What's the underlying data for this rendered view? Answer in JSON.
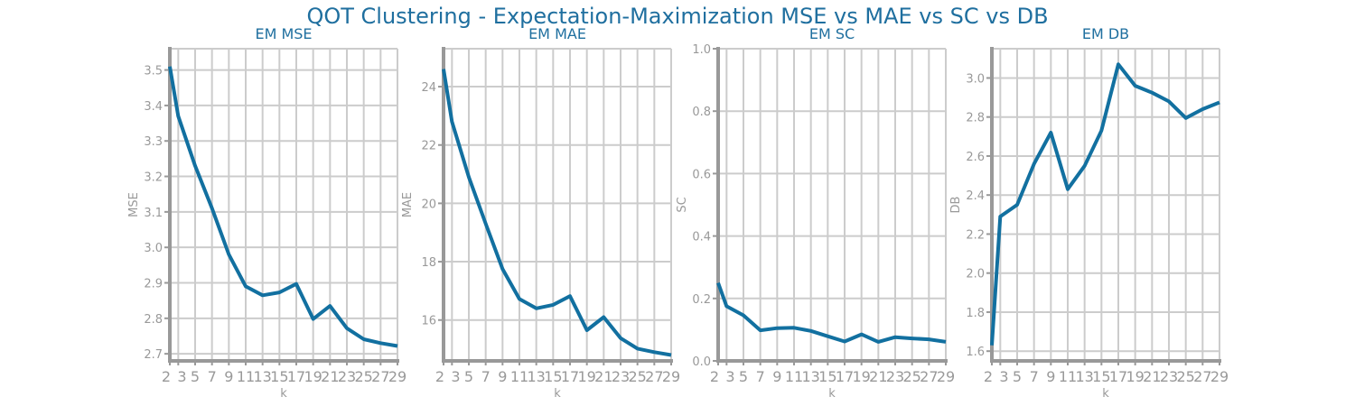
{
  "suptitle": "QOT Clustering - Expectation-Maximization MSE vs MAE vs SC vs DB",
  "colors": {
    "title": "#1f6f9f",
    "series": "#1270a0",
    "grid": "#cccccc",
    "spine": "#999999",
    "tick_label": "#999999"
  },
  "chart_data": [
    {
      "type": "line",
      "title": "EM MSE",
      "xlabel": "k",
      "ylabel": "MSE",
      "x": [
        2,
        3,
        5,
        7,
        9,
        11,
        13,
        15,
        17,
        19,
        21,
        23,
        25,
        27,
        29
      ],
      "xticks": [
        "2",
        "3",
        "5",
        "7",
        "9",
        "11",
        "13",
        "15",
        "17",
        "19",
        "21",
        "23",
        "25",
        "27",
        "29"
      ],
      "xlim": [
        2,
        29
      ],
      "y": [
        3.51,
        3.37,
        3.23,
        3.11,
        2.98,
        2.89,
        2.865,
        2.873,
        2.897,
        2.798,
        2.835,
        2.772,
        2.741,
        2.73,
        2.722
      ],
      "ylim": [
        2.68,
        3.56
      ],
      "yticks": [
        2.7,
        2.8,
        2.9,
        3.0,
        3.1,
        3.2,
        3.3,
        3.4,
        3.5
      ],
      "ytick_labels": [
        "2.7",
        "2.8",
        "2.9",
        "3.0",
        "3.1",
        "3.2",
        "3.3",
        "3.4",
        "3.5"
      ],
      "grid": true
    },
    {
      "type": "line",
      "title": "EM MAE",
      "xlabel": "k",
      "ylabel": "MAE",
      "x": [
        2,
        3,
        5,
        7,
        9,
        11,
        13,
        15,
        17,
        19,
        21,
        23,
        25,
        27,
        29
      ],
      "xticks": [
        "2",
        "3",
        "5",
        "7",
        "9",
        "11",
        "13",
        "15",
        "17",
        "19",
        "21",
        "23",
        "25",
        "27",
        "29"
      ],
      "xlim": [
        2,
        29
      ],
      "y": [
        24.6,
        22.8,
        20.9,
        19.3,
        17.75,
        16.72,
        16.4,
        16.52,
        16.82,
        15.65,
        16.1,
        15.38,
        15.02,
        14.9,
        14.8
      ],
      "ylim": [
        14.6,
        25.3
      ],
      "yticks": [
        16,
        18,
        20,
        22,
        24
      ],
      "ytick_labels": [
        "16",
        "18",
        "20",
        "22",
        "24"
      ],
      "grid": true
    },
    {
      "type": "line",
      "title": "EM SC",
      "xlabel": "k",
      "ylabel": "SC",
      "x": [
        2,
        3,
        5,
        7,
        9,
        11,
        13,
        15,
        17,
        19,
        21,
        23,
        25,
        27,
        29
      ],
      "xticks": [
        "2",
        "3",
        "5",
        "7",
        "9",
        "11",
        "13",
        "15",
        "17",
        "19",
        "21",
        "23",
        "25",
        "27",
        "29"
      ],
      "xlim": [
        2,
        29
      ],
      "y": [
        0.25,
        0.175,
        0.146,
        0.098,
        0.105,
        0.106,
        0.096,
        0.079,
        0.062,
        0.085,
        0.061,
        0.076,
        0.072,
        0.069,
        0.061
      ],
      "ylim": [
        0.0,
        1.0
      ],
      "yticks": [
        0.0,
        0.2,
        0.4,
        0.6,
        0.8,
        1.0
      ],
      "ytick_labels": [
        "0.0",
        "0.2",
        "0.4",
        "0.6",
        "0.8",
        "1.0"
      ],
      "grid": true
    },
    {
      "type": "line",
      "title": "EM DB",
      "xlabel": "k",
      "ylabel": "DB",
      "x": [
        2,
        3,
        5,
        7,
        9,
        11,
        13,
        15,
        17,
        19,
        21,
        23,
        25,
        27,
        29
      ],
      "xticks": [
        "2",
        "3",
        "5",
        "7",
        "9",
        "11",
        "13",
        "15",
        "17",
        "19",
        "21",
        "23",
        "25",
        "27",
        "29"
      ],
      "xlim": [
        2,
        29
      ],
      "y": [
        1.63,
        2.29,
        2.35,
        2.56,
        2.72,
        2.43,
        2.55,
        2.73,
        3.07,
        2.96,
        2.925,
        2.88,
        2.795,
        2.84,
        2.875
      ],
      "ylim": [
        1.55,
        3.15
      ],
      "yticks": [
        1.6,
        1.8,
        2.0,
        2.2,
        2.4,
        2.6,
        2.8,
        3.0
      ],
      "ytick_labels": [
        "1.6",
        "1.8",
        "2.0",
        "2.2",
        "2.4",
        "2.6",
        "2.8",
        "3.0"
      ],
      "grid": true
    }
  ]
}
